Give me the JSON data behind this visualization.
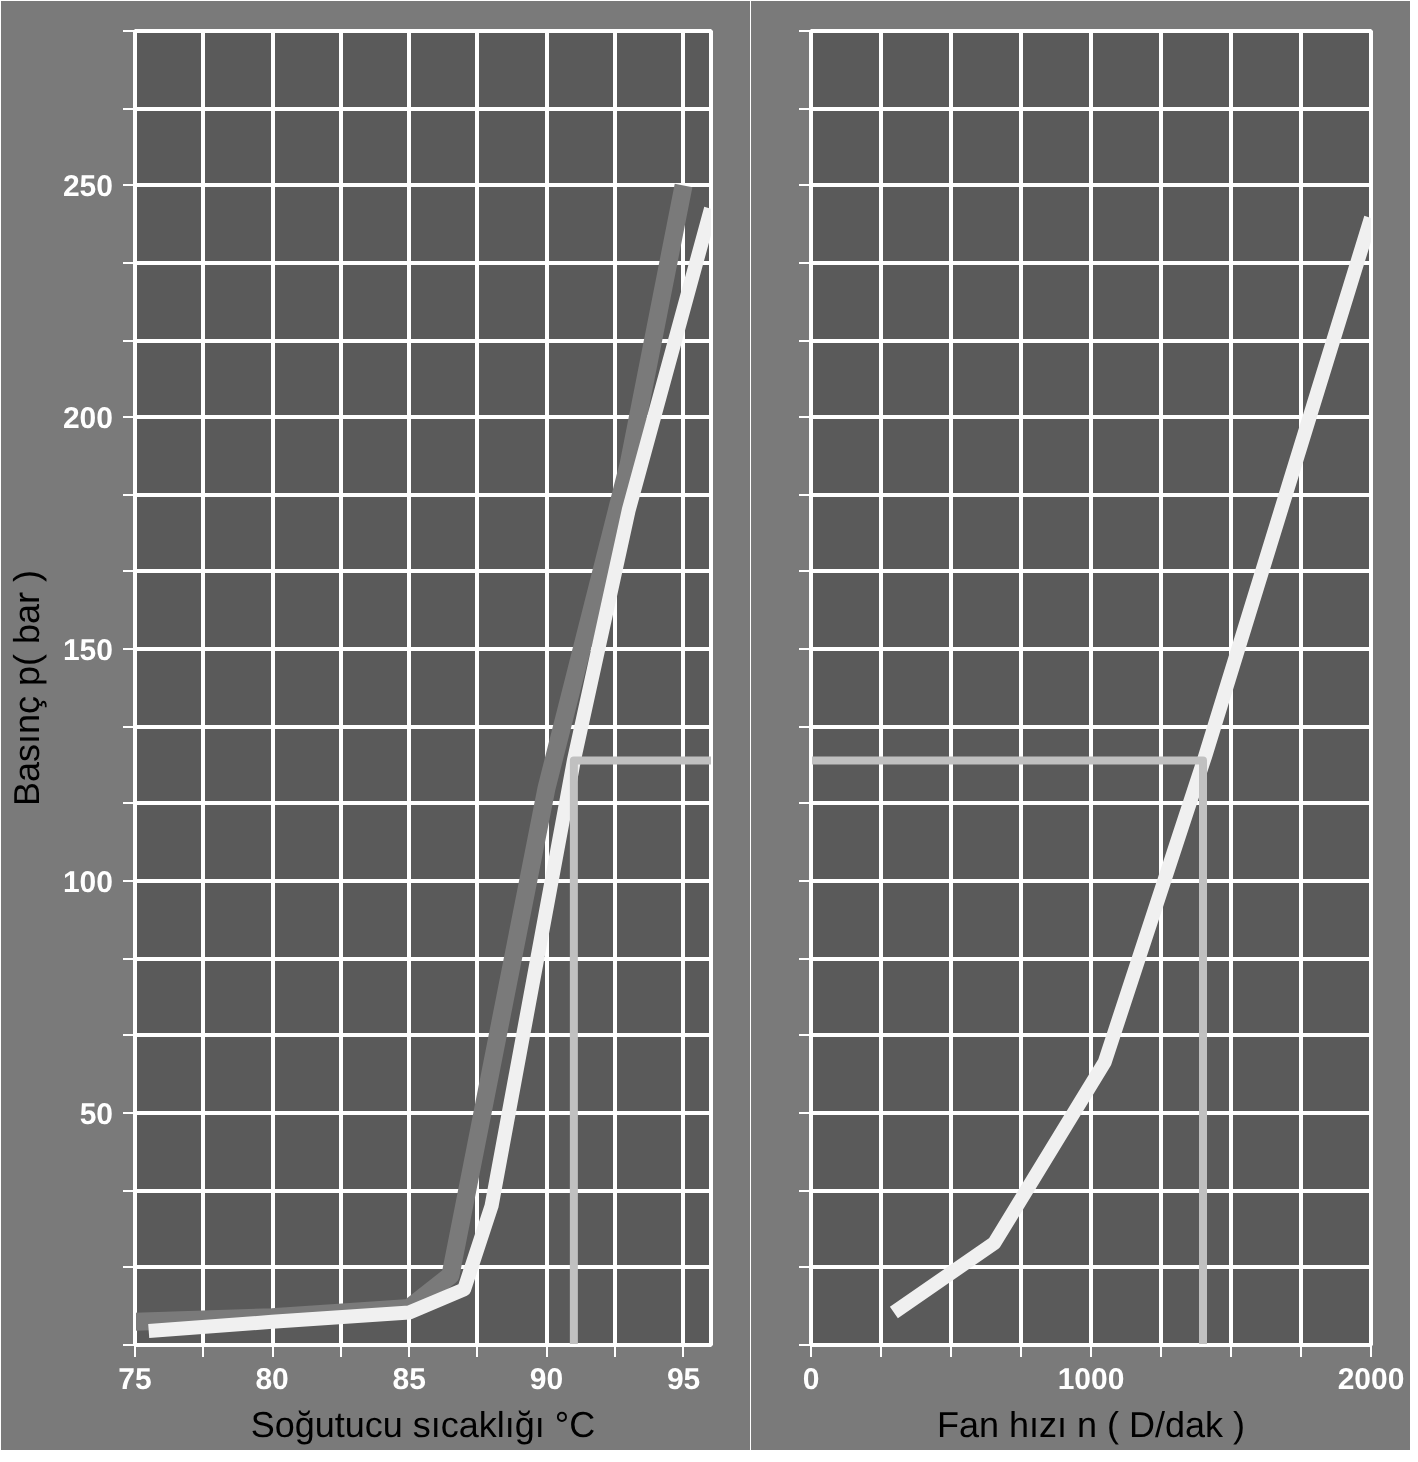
{
  "chart_data": [
    {
      "type": "line",
      "xlabel": "Soğutucu sıcaklığı °C",
      "ylabel": "Basınç p( bar )",
      "xlim": [
        75,
        96
      ],
      "xticks": [
        75,
        {
          "value": 77.5,
          "label": null
        },
        80,
        {
          "value": 82.5,
          "label": null
        },
        85,
        {
          "value": 87.5,
          "label": null
        },
        90,
        {
          "value": 92.5,
          "label": null
        },
        95
      ],
      "ylim": [
        0,
        283.3
      ],
      "yticks": [
        {
          "value": 0,
          "label": null
        },
        {
          "value": 16.67,
          "label": null
        },
        {
          "value": 33.33,
          "label": null
        },
        50,
        {
          "value": 66.67,
          "label": null
        },
        {
          "value": 83.33,
          "label": null
        },
        100,
        {
          "value": 116.67,
          "label": null
        },
        {
          "value": 133.33,
          "label": null
        },
        150,
        {
          "value": 166.67,
          "label": null
        },
        {
          "value": 183.33,
          "label": null
        },
        200,
        {
          "value": 216.67,
          "label": null
        },
        {
          "value": 233.33,
          "label": null
        },
        250,
        {
          "value": 266.67,
          "label": null
        },
        {
          "value": 283.3,
          "label": null
        }
      ],
      "grid": true,
      "series": [
        {
          "color": "#7a7a7a",
          "x": [
            75,
            80,
            85,
            86.5,
            88,
            90,
            93,
            95
          ],
          "values": [
            5,
            6,
            8,
            15,
            60,
            120,
            190,
            250
          ]
        },
        {
          "color": "#f0f0f0",
          "x": [
            75.5,
            80,
            85,
            87,
            88,
            91,
            93,
            96
          ],
          "values": [
            3,
            5,
            7,
            12,
            30,
            126,
            180,
            245
          ]
        },
        {
          "color": "#c0c0c0",
          "x": [
            91,
            91,
            96
          ],
          "values": [
            0,
            126,
            126
          ]
        }
      ]
    },
    {
      "type": "line",
      "xlabel": "Fan hızı n ( D/dak )",
      "xlim": [
        0,
        2000
      ],
      "xticks": [
        0,
        {
          "value": 250,
          "label": null
        },
        {
          "value": 500,
          "label": null
        },
        {
          "value": 750,
          "label": null
        },
        1000,
        {
          "value": 1250,
          "label": null
        },
        {
          "value": 1500,
          "label": null
        },
        {
          "value": 1750,
          "label": null
        },
        2000
      ],
      "ylim": [
        0,
        283.3
      ],
      "yticks": [
        {
          "value": 0,
          "label": null
        },
        {
          "value": 16.67,
          "label": null
        },
        {
          "value": 33.33,
          "label": null
        },
        {
          "value": 50,
          "label": null
        },
        {
          "value": 66.67,
          "label": null
        },
        {
          "value": 83.33,
          "label": null
        },
        {
          "value": 100,
          "label": null
        },
        {
          "value": 116.67,
          "label": null
        },
        {
          "value": 133.33,
          "label": null
        },
        {
          "value": 150,
          "label": null
        },
        {
          "value": 166.67,
          "label": null
        },
        {
          "value": 183.33,
          "label": null
        },
        {
          "value": 200,
          "label": null
        },
        {
          "value": 216.67,
          "label": null
        },
        {
          "value": 233.33,
          "label": null
        },
        {
          "value": 250,
          "label": null
        },
        {
          "value": 266.67,
          "label": null
        },
        {
          "value": 283.3,
          "label": null
        }
      ],
      "grid": true,
      "tick_labels": "x",
      "series": [
        {
          "color": "#f0f0f0",
          "x": [
            296,
            655,
            1049,
            1408,
            1704,
            2000
          ],
          "values": [
            7,
            22,
            61,
            127,
            185,
            243
          ]
        },
        {
          "color": "#c0c0c0",
          "x": [
            0,
            1400,
            1400
          ],
          "values": [
            126,
            126,
            0
          ]
        }
      ]
    }
  ]
}
